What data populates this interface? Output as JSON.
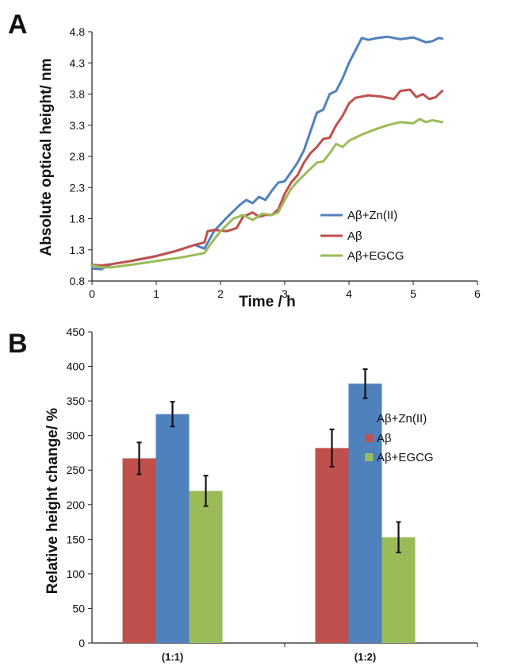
{
  "chart_data": [
    {
      "panel": "A",
      "type": "line",
      "xlabel": "Time / h",
      "ylabel": "Absolute optical height/ nm",
      "xlim": [
        0,
        6
      ],
      "ylim": [
        0.8,
        4.8
      ],
      "xticks": [
        0,
        1,
        2,
        3,
        4,
        5,
        6
      ],
      "yticks": [
        0.8,
        1.3,
        1.8,
        2.3,
        2.8,
        3.3,
        3.8,
        4.3,
        4.8
      ],
      "ytick_labels": [
        "0.8",
        "1.3",
        "1.8",
        "2.3",
        "2.8",
        "3.3",
        "3.8",
        "4.3",
        "4.8"
      ],
      "grid": false,
      "legend_position": "right",
      "series": [
        {
          "name": "Aβ+Zn(II)",
          "color": "#4F81BD",
          "x": [
            0,
            0.15,
            0.3,
            0.6,
            1.0,
            1.3,
            1.6,
            1.75,
            1.9,
            2.1,
            2.3,
            2.4,
            2.5,
            2.6,
            2.7,
            2.8,
            2.9,
            3.0,
            3.1,
            3.2,
            3.3,
            3.4,
            3.5,
            3.6,
            3.7,
            3.8,
            3.9,
            4.0,
            4.1,
            4.2,
            4.3,
            4.45,
            4.6,
            4.8,
            5.0,
            5.2,
            5.3,
            5.4,
            5.45
          ],
          "y": [
            1.0,
            0.99,
            1.07,
            1.12,
            1.2,
            1.28,
            1.38,
            1.32,
            1.6,
            1.82,
            2.02,
            2.1,
            2.05,
            2.15,
            2.1,
            2.25,
            2.38,
            2.4,
            2.55,
            2.7,
            2.9,
            3.2,
            3.5,
            3.55,
            3.8,
            3.85,
            4.05,
            4.3,
            4.5,
            4.7,
            4.67,
            4.7,
            4.72,
            4.68,
            4.71,
            4.63,
            4.65,
            4.7,
            4.69
          ]
        },
        {
          "name": "Aβ",
          "color": "#C0504D",
          "x": [
            0,
            0.15,
            0.3,
            0.6,
            1.0,
            1.3,
            1.6,
            1.75,
            1.8,
            1.9,
            2.1,
            2.25,
            2.35,
            2.5,
            2.6,
            2.7,
            2.8,
            2.9,
            3.0,
            3.1,
            3.2,
            3.3,
            3.4,
            3.5,
            3.6,
            3.7,
            3.8,
            3.9,
            4.0,
            4.1,
            4.3,
            4.5,
            4.7,
            4.8,
            4.95,
            5.05,
            5.15,
            5.25,
            5.35,
            5.45
          ],
          "y": [
            1.06,
            1.05,
            1.07,
            1.12,
            1.2,
            1.28,
            1.38,
            1.42,
            1.6,
            1.62,
            1.6,
            1.65,
            1.83,
            1.9,
            1.83,
            1.86,
            1.86,
            1.95,
            2.2,
            2.38,
            2.5,
            2.7,
            2.85,
            2.95,
            3.08,
            3.1,
            3.3,
            3.45,
            3.65,
            3.74,
            3.78,
            3.76,
            3.72,
            3.85,
            3.87,
            3.75,
            3.8,
            3.72,
            3.75,
            3.85
          ]
        },
        {
          "name": "Aβ+EGCG",
          "color": "#9BBB59",
          "x": [
            0,
            0.15,
            0.3,
            0.6,
            1.0,
            1.4,
            1.75,
            1.85,
            2.0,
            2.2,
            2.35,
            2.5,
            2.65,
            2.8,
            2.9,
            3.0,
            3.1,
            3.2,
            3.35,
            3.5,
            3.6,
            3.7,
            3.8,
            3.9,
            4.0,
            4.2,
            4.4,
            4.6,
            4.8,
            5.0,
            5.1,
            5.2,
            5.3,
            5.45
          ],
          "y": [
            1.05,
            1.02,
            1.02,
            1.06,
            1.12,
            1.18,
            1.25,
            1.4,
            1.6,
            1.8,
            1.86,
            1.78,
            1.88,
            1.86,
            1.9,
            2.1,
            2.28,
            2.4,
            2.55,
            2.7,
            2.72,
            2.85,
            3.0,
            2.95,
            3.05,
            3.15,
            3.23,
            3.3,
            3.35,
            3.33,
            3.4,
            3.35,
            3.38,
            3.35
          ]
        }
      ]
    },
    {
      "panel": "B",
      "type": "bar",
      "categories": [
        "(1:1)",
        "(1:2)"
      ],
      "ylabel": "Relative height change/ %",
      "xlabel": "",
      "ylim": [
        0,
        450
      ],
      "yticks": [
        0,
        50,
        100,
        150,
        200,
        250,
        300,
        350,
        400,
        450
      ],
      "grid": false,
      "legend_position": "right",
      "legend_order": [
        "Aβ+Zn(II)",
        "Aβ",
        "Aβ+EGCG"
      ],
      "series": [
        {
          "name": "Aβ",
          "color": "#C0504D",
          "values": [
            267,
            282
          ],
          "errors": [
            23,
            27
          ]
        },
        {
          "name": "Aβ+Zn(II)",
          "color": "#4F81BD",
          "values": [
            331,
            375
          ],
          "errors": [
            18,
            21
          ]
        },
        {
          "name": "Aβ+EGCG",
          "color": "#9BBB59",
          "values": [
            220,
            153
          ],
          "errors": [
            22,
            22
          ]
        }
      ]
    }
  ]
}
